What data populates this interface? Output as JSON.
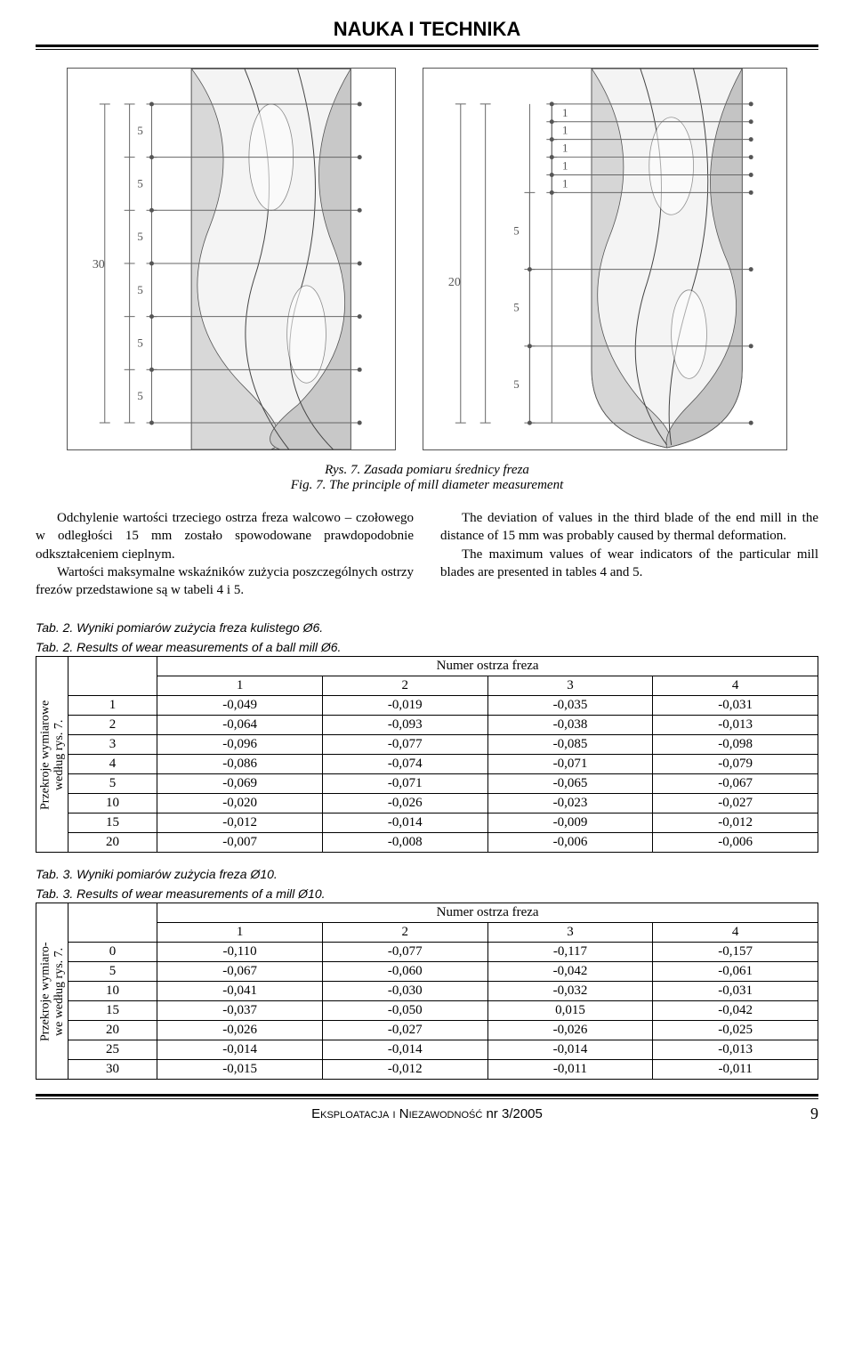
{
  "header": "NAUKA I TECHNIKA",
  "fig_left": {
    "side_label": "30",
    "segments": [
      "5",
      "5",
      "5",
      "5",
      "5",
      "5"
    ]
  },
  "fig_right": {
    "side_label": "20",
    "top_segments": [
      "1",
      "1",
      "1",
      "1",
      "1"
    ],
    "bottom_segments": [
      "5",
      "5",
      "5"
    ]
  },
  "caption": {
    "line1": "Rys. 7. Zasada pomiaru średnicy freza",
    "line2": "Fig. 7. The principle of mill diameter measurement"
  },
  "para_left": {
    "p1": "Odchylenie wartości trzeciego ostrza freza walcowo – czołowego w odległości 15 mm zostało spowodowane prawdopodobnie odkształceniem cieplnym.",
    "p2": "Wartości maksymalne wskaźników zużycia poszczególnych ostrzy frezów przedstawione są w tabeli 4 i 5."
  },
  "para_right": {
    "p1": "The deviation of values in the third blade of the end mill in the distance of 15 mm was probably caused by thermal deformation.",
    "p2": "The maximum values of wear indicators of the particular mill blades are presented in tables 4 and 5."
  },
  "tab2": {
    "caption1": "Tab. 2.  Wyniki pomiarów zużycia freza kulistego Ø6.",
    "caption2": "Tab. 2.  Results of  wear measurements of a ball mill Ø6.",
    "header_top": "Numer ostrza freza",
    "row_label": "Przekroje wymiarowe\nwedług rys. 7.",
    "cols": [
      "1",
      "2",
      "3",
      "4"
    ],
    "row_heads": [
      "1",
      "2",
      "3",
      "4",
      "5",
      "10",
      "15",
      "20"
    ],
    "rows": [
      [
        "-0,049",
        "-0,019",
        "-0,035",
        "-0,031"
      ],
      [
        "-0,064",
        "-0,093",
        "-0,038",
        "-0,013"
      ],
      [
        "-0,096",
        "-0,077",
        "-0,085",
        "-0,098"
      ],
      [
        "-0,086",
        "-0,074",
        "-0,071",
        "-0,079"
      ],
      [
        "-0,069",
        "-0,071",
        "-0,065",
        "-0,067"
      ],
      [
        "-0,020",
        "-0,026",
        "-0,023",
        "-0,027"
      ],
      [
        "-0,012",
        "-0,014",
        "-0,009",
        "-0,012"
      ],
      [
        "-0,007",
        "-0,008",
        "-0,006",
        "-0,006"
      ]
    ]
  },
  "tab3": {
    "caption1": "Tab. 3. Wyniki pomiarów zużycia freza Ø10.",
    "caption2": "Tab. 3. Results of wear measurements of a mill Ø10.",
    "header_top": "Numer ostrza freza",
    "row_label": "Przekroje wymiaro-\nwe według rys. 7.",
    "cols": [
      "1",
      "2",
      "3",
      "4"
    ],
    "row_heads": [
      "0",
      "5",
      "10",
      "15",
      "20",
      "25",
      "30"
    ],
    "rows": [
      [
        "-0,110",
        "-0,077",
        "-0,117",
        "-0,157"
      ],
      [
        "-0,067",
        "-0,060",
        "-0,042",
        "-0,061"
      ],
      [
        "-0,041",
        "-0,030",
        "-0,032",
        "-0,031"
      ],
      [
        "-0,037",
        "-0,050",
        "0,015",
        "-0,042"
      ],
      [
        "-0,026",
        "-0,027",
        "-0,026",
        "-0,025"
      ],
      [
        "-0,014",
        "-0,014",
        "-0,014",
        "-0,013"
      ],
      [
        "-0,015",
        "-0,012",
        "-0,011",
        "-0,011"
      ]
    ]
  },
  "footer": {
    "text1": "Eksploatacja i Niezawodność",
    "text2": " nr ",
    "text3": "3/2005",
    "page": "9"
  },
  "colors": {
    "drill_light": "#e8e8e8",
    "drill_mid": "#c0c0c0",
    "drill_dark": "#888888",
    "dim_line": "#666666",
    "dim_text": "#555555"
  }
}
